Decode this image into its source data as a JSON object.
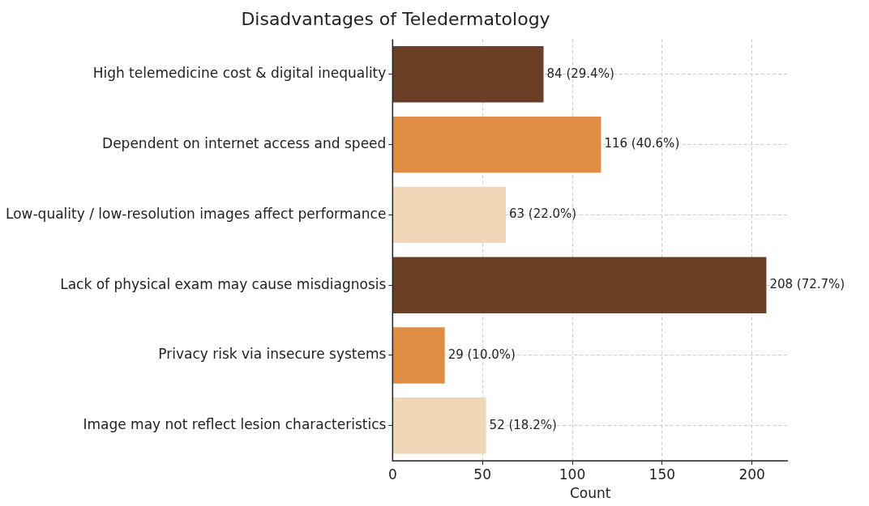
{
  "chart_data": {
    "type": "bar",
    "orientation": "horizontal",
    "title": "Disadvantages of Teledermatology",
    "xlabel": "Count",
    "categories": [
      "High telemedicine cost & digital inequality",
      "Dependent on internet access and speed",
      "Low-quality / low-resolution images affect performance",
      "Lack of physical exam may cause misdiagnosis",
      "Privacy risk via insecure systems",
      "Image may not reflect lesion characteristics"
    ],
    "values": [
      84,
      116,
      63,
      208,
      29,
      52
    ],
    "colors": [
      "#6b3e26",
      "#e08c45",
      "#f2d6b8",
      "#6b3e26",
      "#e08c45",
      "#f2d6b8"
    ],
    "value_labels": [
      "84 (29.4%)",
      "116 (40.6%)",
      "63 (22.0%)",
      "208 (72.7%)",
      "29 (10.0%)",
      "52 (18.2%)"
    ],
    "xlim": [
      0,
      220
    ],
    "xticks": [
      0,
      50,
      100,
      150,
      200
    ],
    "grid": true
  }
}
